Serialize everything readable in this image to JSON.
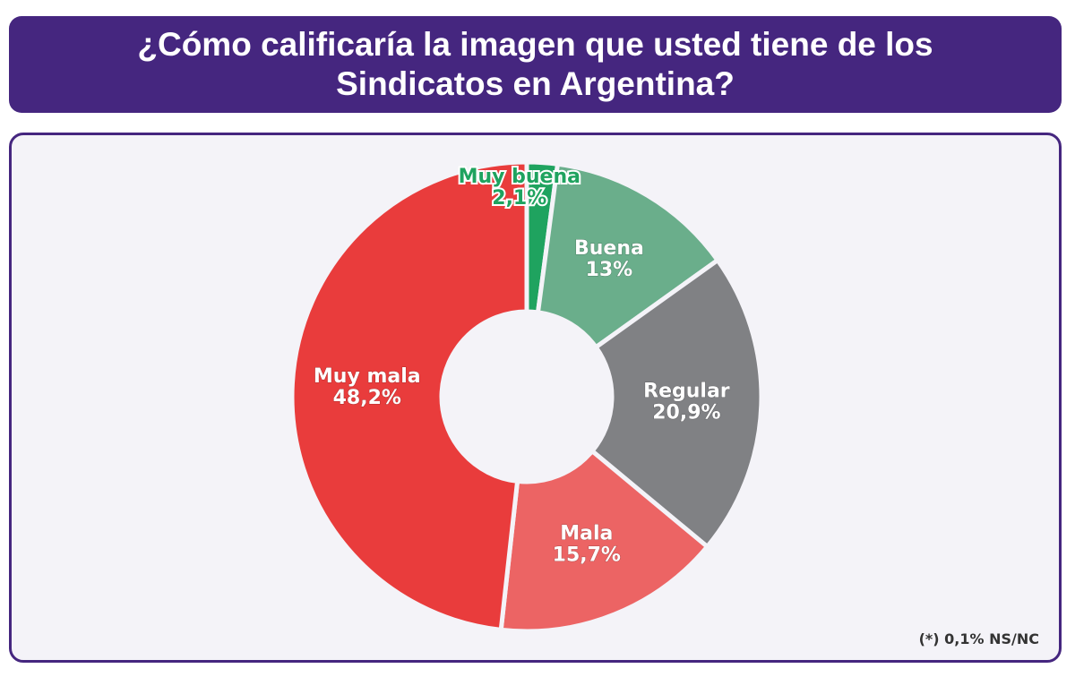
{
  "chart_data": {
    "type": "donut",
    "title": "¿Cómo calificaría la imagen que usted tiene de los Sindicatos en Argentina?",
    "categories": [
      "Muy buena",
      "Buena",
      "Regular",
      "Mala",
      "Muy mala"
    ],
    "values": [
      2.1,
      13,
      20.9,
      15.7,
      48.2
    ],
    "value_labels": [
      "2,1%",
      "13%",
      "20,9%",
      "15,7%",
      "48,2%"
    ],
    "colors": [
      "#1fa35f",
      "#6aae8b",
      "#808184",
      "#ec6464",
      "#e93c3c"
    ],
    "annotation": "(*) 0,1% NS/NC"
  }
}
